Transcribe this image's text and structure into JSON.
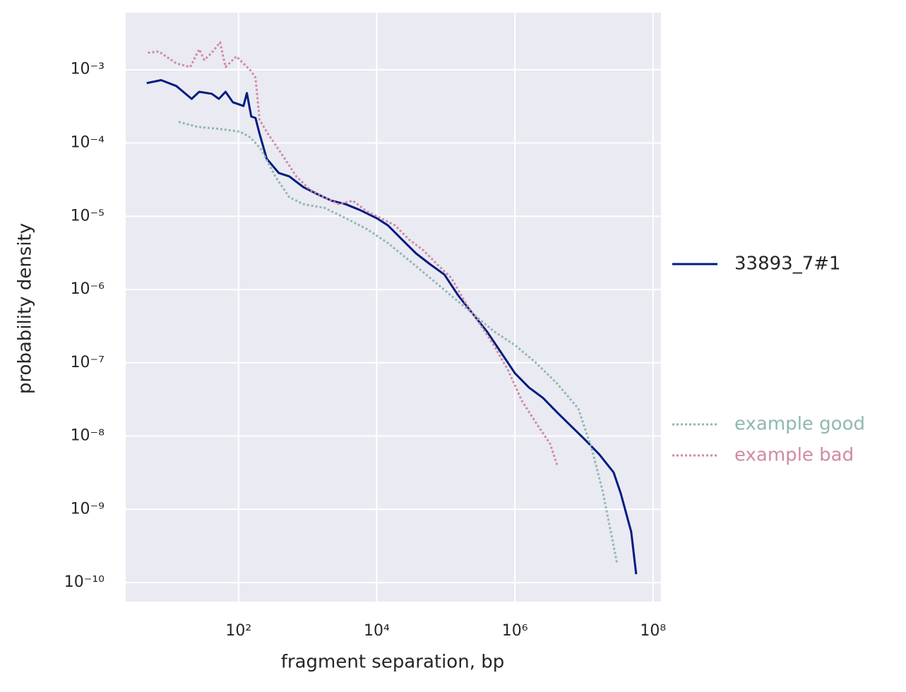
{
  "chart_data": {
    "type": "line",
    "xlabel": "fragment separation, bp",
    "ylabel": "probability density",
    "xscale": "log",
    "yscale": "log",
    "xlim": [
      2.33,
      130000000
    ],
    "ylim": [
      5.5e-11,
      0.006
    ],
    "xticks": [
      {
        "value": 100,
        "label": "10²"
      },
      {
        "value": 10000,
        "label": "10⁴"
      },
      {
        "value": 1000000,
        "label": "10⁶"
      },
      {
        "value": 100000000,
        "label": "10⁸"
      }
    ],
    "yticks": [
      {
        "value": 0.001,
        "label": "10⁻³"
      },
      {
        "value": 0.0001,
        "label": "10⁻⁴"
      },
      {
        "value": 1e-05,
        "label": "10⁻⁵"
      },
      {
        "value": 1e-06,
        "label": "10⁻⁶"
      },
      {
        "value": 1e-07,
        "label": "10⁻⁷"
      },
      {
        "value": 1e-08,
        "label": "10⁻⁸"
      },
      {
        "value": 1e-09,
        "label": "10⁻⁹"
      },
      {
        "value": 1e-10,
        "label": "10⁻¹⁰"
      }
    ],
    "grid": true,
    "background": "#eaeaf2",
    "legend": "right",
    "series": [
      {
        "name": "33893_7#1",
        "color": "#001c7f",
        "linestyle": "solid",
        "legend_text_color": "#262626",
        "x": [
          4.7,
          7.6,
          12.6,
          21,
          27,
          41,
          52,
          65,
          83,
          118,
          132,
          153,
          176,
          202,
          256,
          382,
          543,
          869,
          1390,
          2223,
          3556,
          5690,
          10000,
          14560,
          23300,
          37240,
          59700,
          95500,
          152800,
          244000,
          391000,
          625000,
          1000000,
          1600000,
          2560000,
          4090000,
          6550000,
          10500000,
          16700000,
          26800000,
          34000000,
          48300000,
          56900000
        ],
        "values": [
          0.000656,
          0.00072,
          0.0006,
          0.0004,
          0.0005,
          0.00047,
          0.0004,
          0.0005,
          0.00036,
          0.00032,
          0.00048,
          0.00023,
          0.00022,
          0.000133,
          6.1e-05,
          3.9e-05,
          3.5e-05,
          2.5e-05,
          2e-05,
          1.63e-05,
          1.46e-05,
          1.22e-05,
          9.4e-06,
          7.5e-06,
          4.8e-06,
          3.1e-06,
          2.2e-06,
          1.6e-06,
          8.2e-07,
          4.7e-07,
          2.7e-07,
          1.4e-07,
          7.2e-08,
          4.6e-08,
          3.3e-08,
          2.1e-08,
          1.36e-08,
          8.8e-09,
          5.6e-09,
          3.2e-09,
          1.66e-09,
          4.9e-10,
          1.3e-10
        ]
      },
      {
        "name": "example good",
        "color": "#8fb8b1",
        "linestyle": "dotted",
        "legend_text_color": "#8fb8b1",
        "x": [
          13.6,
          25.6,
          52,
          105,
          149,
          212,
          340,
          543,
          869,
          1758,
          3556,
          7190,
          14560,
          29400,
          59700,
          120800,
          244000,
          494000,
          1000000,
          2020000,
          4090000,
          8280000,
          13200000,
          18900000,
          30200000
        ],
        "values": [
          0.000194,
          0.000166,
          0.000156,
          0.000143,
          0.000119,
          8.2e-05,
          3.5e-05,
          1.82e-05,
          1.46e-05,
          1.3e-05,
          9.4e-06,
          6.7e-06,
          4.3e-06,
          2.5e-06,
          1.43e-06,
          8.2e-07,
          4.7e-07,
          2.7e-07,
          1.74e-07,
          1e-07,
          5.2e-08,
          2.37e-08,
          6.3e-09,
          1.66e-09,
          1.8e-10
        ]
      },
      {
        "name": "example bad",
        "color": "#d08aa6",
        "linestyle": "dotted",
        "legend_text_color": "#d08aa6",
        "x": [
          4.9,
          7.0,
          12.6,
          20,
          27,
          32,
          41,
          54,
          65,
          93,
          118,
          149,
          176,
          202,
          268,
          429,
          687,
          1100,
          1758,
          2810,
          4500,
          7190,
          11500,
          18400,
          29400,
          47100,
          75400,
          120800,
          193000,
          309000,
          494000,
          791000,
          1270000,
          2020000,
          3240000,
          4090000
        ],
        "values": [
          0.0017,
          0.00178,
          0.00122,
          0.00109,
          0.0019,
          0.00136,
          0.0017,
          0.00237,
          0.00109,
          0.00152,
          0.00122,
          0.00098,
          0.00078,
          0.000207,
          0.000133,
          6.9e-05,
          3.5e-05,
          2.27e-05,
          1.82e-05,
          1.46e-05,
          1.63e-05,
          1.17e-05,
          9.4e-06,
          7.5e-06,
          4.8e-06,
          3.45e-06,
          2.2e-06,
          1.43e-06,
          6.6e-07,
          3.4e-07,
          1.74e-07,
          8e-08,
          3e-08,
          1.52e-08,
          7.8e-09,
          4e-09
        ]
      }
    ]
  }
}
